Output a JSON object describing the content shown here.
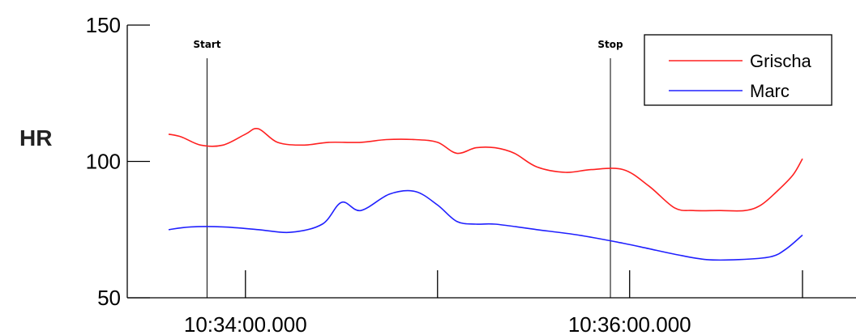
{
  "chart_data": {
    "type": "line",
    "title": "",
    "xlabel": "",
    "ylabel": "HR",
    "ylim": [
      50,
      150
    ],
    "yticks": [
      "150",
      "100",
      "50"
    ],
    "xlim": [
      "10:33:36",
      "10:36:54"
    ],
    "xtick_labels": [
      "10:34:00.000",
      "10:36:00.000"
    ],
    "xtick_marks": [
      "10:34:00",
      "10:35:00",
      "10:36:00",
      "10:36:54"
    ],
    "markers": [
      {
        "label": "Start",
        "time": "10:33:48"
      },
      {
        "label": "Stop",
        "time": "10:35:54"
      }
    ],
    "legend_position": "top-right",
    "grid": false,
    "series": [
      {
        "name": "Grischa",
        "color": "#ff2020",
        "x": [
          "10:33:36",
          "10:33:40",
          "10:33:46",
          "10:33:53",
          "10:34:00",
          "10:34:04",
          "10:34:10",
          "10:34:18",
          "10:34:26",
          "10:34:36",
          "10:34:44",
          "10:34:53",
          "10:35:00",
          "10:35:06",
          "10:35:12",
          "10:35:18",
          "10:35:24",
          "10:35:31",
          "10:35:40",
          "10:35:48",
          "10:35:58",
          "10:36:06",
          "10:36:14",
          "10:36:20",
          "10:36:28",
          "10:36:36",
          "10:36:41",
          "10:36:46",
          "10:36:51",
          "10:36:54"
        ],
        "y": [
          110,
          109,
          106,
          106,
          110,
          112,
          107,
          106,
          107,
          107,
          108,
          108,
          107,
          103,
          105,
          105,
          103,
          98,
          96,
          97,
          97,
          91,
          83,
          82,
          82,
          82,
          84,
          89,
          95,
          101
        ]
      },
      {
        "name": "Marc",
        "color": "#2020ff",
        "x": [
          "10:33:36",
          "10:33:43",
          "10:33:53",
          "10:34:04",
          "10:34:14",
          "10:34:24",
          "10:34:30",
          "10:34:36",
          "10:34:45",
          "10:34:53",
          "10:35:00",
          "10:35:06",
          "10:35:12",
          "10:35:18",
          "10:35:31",
          "10:35:44",
          "10:35:58",
          "10:36:06",
          "10:36:14",
          "10:36:24",
          "10:36:34",
          "10:36:44",
          "10:36:49",
          "10:36:54"
        ],
        "y": [
          75,
          76,
          76,
          75,
          74,
          77,
          85,
          82,
          88,
          89,
          84,
          78,
          77,
          77,
          75,
          73,
          70,
          68,
          66,
          64,
          64,
          65,
          68,
          73
        ]
      }
    ]
  }
}
